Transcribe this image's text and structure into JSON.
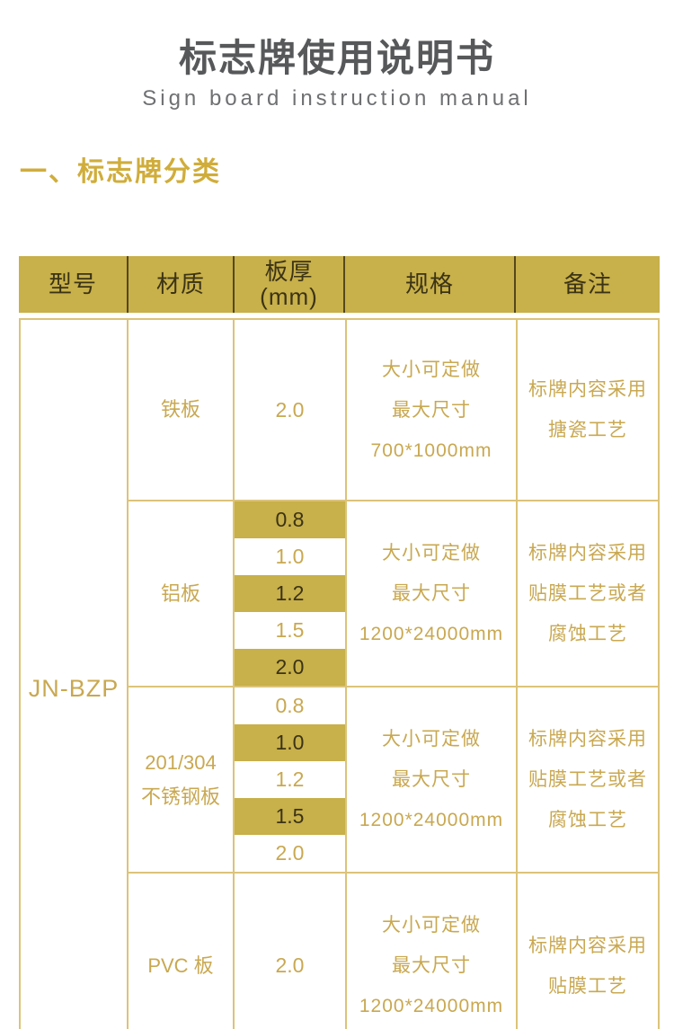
{
  "page": {
    "title": "标志牌使用说明书",
    "subtitle": "Sign board instruction manual",
    "section_heading": "一、标志牌分类"
  },
  "colors": {
    "gold_fill": "#c8b04a",
    "gold_text": "#c9a851",
    "dark_text_on_gold": "#3b3315",
    "light_gold_border": "#dcc379",
    "header_divider": "#54481c",
    "title_gray": "#57585a",
    "heading_gold": "#d0ad3b"
  },
  "table": {
    "model": "JN-BZP",
    "headers": [
      {
        "label": "型号"
      },
      {
        "label": "材质"
      },
      {
        "label": "板厚",
        "sublabel": "(mm)"
      },
      {
        "label": "规格"
      },
      {
        "label": "备注"
      }
    ],
    "sections": [
      {
        "material_lines": [
          "铁板"
        ],
        "thickness": [
          {
            "value": "2.0",
            "highlight": false
          }
        ],
        "spec_lines": [
          "大小可定做",
          "最大尺寸",
          "700*1000mm"
        ],
        "note_lines": [
          "标牌内容采用",
          "搪瓷工艺"
        ]
      },
      {
        "material_lines": [
          "铝板"
        ],
        "thickness": [
          {
            "value": "0.8",
            "highlight": true
          },
          {
            "value": "1.0",
            "highlight": false
          },
          {
            "value": "1.2",
            "highlight": true
          },
          {
            "value": "1.5",
            "highlight": false
          },
          {
            "value": "2.0",
            "highlight": true
          }
        ],
        "spec_lines": [
          "大小可定做",
          "最大尺寸",
          "1200*24000mm"
        ],
        "note_lines": [
          "标牌内容采用",
          "贴膜工艺或者",
          "腐蚀工艺"
        ]
      },
      {
        "material_lines": [
          "201/304",
          "不锈钢板"
        ],
        "thickness": [
          {
            "value": "0.8",
            "highlight": false
          },
          {
            "value": "1.0",
            "highlight": true
          },
          {
            "value": "1.2",
            "highlight": false
          },
          {
            "value": "1.5",
            "highlight": true
          },
          {
            "value": "2.0",
            "highlight": false
          }
        ],
        "spec_lines": [
          "大小可定做",
          "最大尺寸",
          "1200*24000mm"
        ],
        "note_lines": [
          "标牌内容采用",
          "贴膜工艺或者",
          "腐蚀工艺"
        ]
      },
      {
        "material_lines": [
          "PVC 板"
        ],
        "thickness": [
          {
            "value": "2.0",
            "highlight": false
          }
        ],
        "spec_lines": [
          "大小可定做",
          "最大尺寸",
          "1200*24000mm"
        ],
        "note_lines": [
          "标牌内容采用",
          "贴膜工艺"
        ]
      }
    ]
  }
}
